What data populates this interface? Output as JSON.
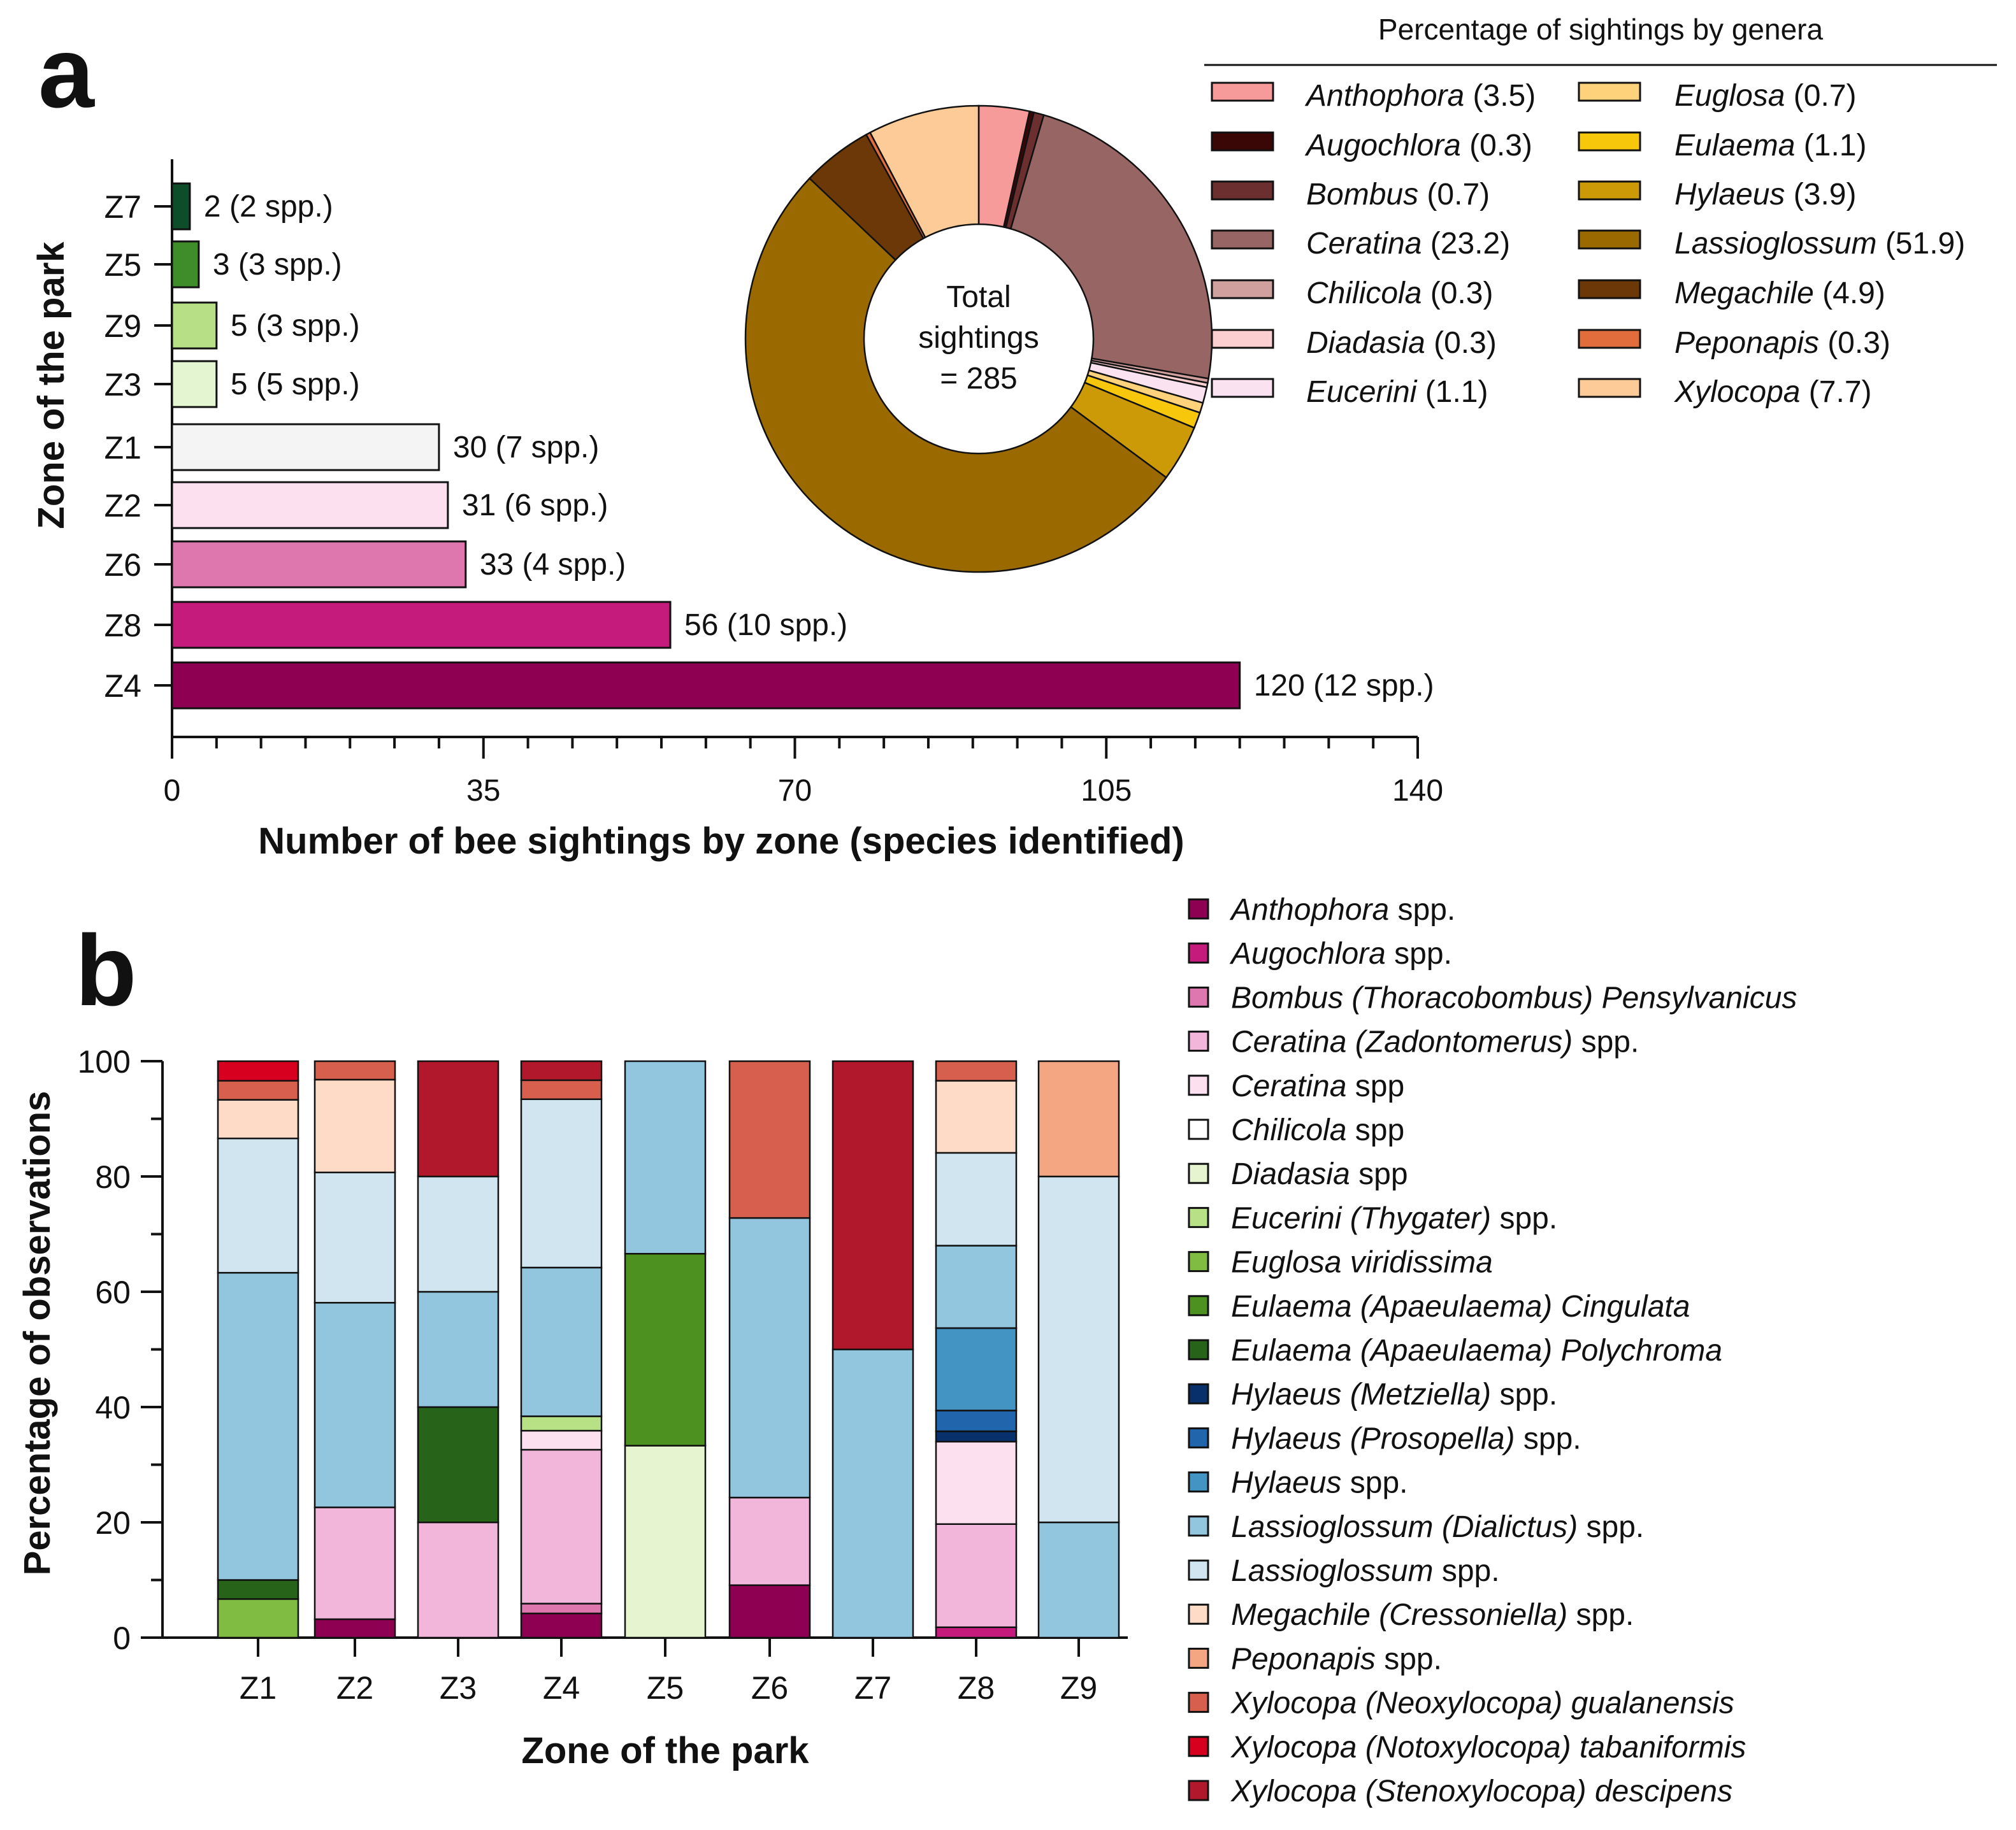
{
  "panel_a": {
    "label": "a",
    "ylabel": "Zone of the park",
    "xlabel": "Number of bee sightings by zone (species identified)",
    "xlim": [
      0,
      140
    ],
    "xticks": [
      "0",
      "35",
      "70",
      "105",
      "140"
    ]
  },
  "panel_b": {
    "label": "b",
    "ylabel": "Percentage of observations",
    "xlabel": "Zone of the park",
    "yticks": [
      "0",
      "20",
      "40",
      "60",
      "80",
      "100"
    ]
  },
  "donut": {
    "title": "Percentage of sightings by genera",
    "center_line1": "Total",
    "center_line2": "sightings",
    "center_line3": "= 285"
  },
  "chart_data": [
    {
      "type": "bar",
      "orientation": "horizontal",
      "title": "",
      "xlabel": "Number of bee sightings by zone (species identified)",
      "ylabel": "Zone of the park",
      "xlim": [
        0,
        140
      ],
      "categories": [
        "Z7",
        "Z5",
        "Z9",
        "Z3",
        "Z1",
        "Z2",
        "Z6",
        "Z8",
        "Z4"
      ],
      "values": [
        2,
        3,
        5,
        5,
        30,
        31,
        33,
        56,
        120
      ],
      "data_labels": [
        "2 (2 spp.)",
        "3 (3 spp.)",
        "5 (3 spp.)",
        "5 (5 spp.)",
        "30 (7 spp.)",
        "31 (6 spp.)",
        "33 (4 spp.)",
        "56 (10 spp.)",
        "120 (12 spp.)"
      ],
      "colors": [
        "#0e4d2a",
        "#3f8c2a",
        "#b7df85",
        "#e4f5d2",
        "#f4f4f4",
        "#fde0ef",
        "#de77ae",
        "#c51b7d",
        "#8e0152"
      ]
    },
    {
      "type": "pie",
      "title": "Percentage of sightings by genera",
      "total": 285,
      "labels": [
        "Anthophora",
        "Augochlora",
        "Bombus",
        "Ceratina",
        "Chilicola",
        "Diadasia",
        "Eucerini",
        "Euglosa",
        "Eulaema",
        "Hylaeus",
        "Lassioglossum",
        "Megachile",
        "Peponapis",
        "Xylocopa"
      ],
      "legend_values": [
        "(3.5)",
        "(0.3)",
        "(0.7)",
        "(23.2)",
        "(0.3)",
        "(0.3)",
        "(1.1)",
        "(0.7)",
        "(1.1)",
        "(3.9)",
        "(51.9)",
        "(4.9)",
        "(0.3)",
        "(7.7)"
      ],
      "values": [
        3.5,
        0.3,
        0.7,
        23.2,
        0.3,
        0.3,
        1.1,
        0.7,
        1.1,
        3.9,
        51.9,
        4.9,
        0.3,
        7.7
      ],
      "colors": [
        "#f79a9a",
        "#3a0606",
        "#6b2f2f",
        "#976563",
        "#d0a09e",
        "#fbcfd0",
        "#fbe2f0",
        "#fdd27a",
        "#f7c70b",
        "#cc9a06",
        "#9a6a00",
        "#6c3807",
        "#e06d3b",
        "#fdcb98"
      ]
    },
    {
      "type": "bar",
      "stacked": true,
      "title": "",
      "xlabel": "Zone of the park",
      "ylabel": "Percentage of observations",
      "ylim": [
        0,
        100
      ],
      "categories": [
        "Z1",
        "Z2",
        "Z3",
        "Z4",
        "Z5",
        "Z6",
        "Z7",
        "Z8",
        "Z9"
      ],
      "series": [
        {
          "name": "Anthophora",
          "suffix": " spp.",
          "color": "#8e0152",
          "values": [
            0,
            3.2,
            0,
            4.2,
            0,
            9.1,
            0,
            0,
            0
          ]
        },
        {
          "name": "Augochlora",
          "suffix": " spp.",
          "color": "#c51b7d",
          "values": [
            0,
            0,
            0,
            0,
            0,
            0,
            0,
            1.8,
            0
          ]
        },
        {
          "name": "Bombus (Thoracobombus) Pensylvanicus",
          "suffix": "",
          "color": "#de77ae",
          "values": [
            0,
            0,
            0,
            1.7,
            0,
            0,
            0,
            0,
            0
          ]
        },
        {
          "name": "Ceratina (Zadontomerus)",
          "suffix": " spp.",
          "color": "#f1b6da",
          "values": [
            0,
            19.4,
            20,
            26.7,
            0,
            15.2,
            0,
            17.9,
            0
          ]
        },
        {
          "name": "Ceratina",
          "suffix": " spp",
          "color": "#fde0ef",
          "values": [
            0,
            0,
            0,
            3.3,
            0,
            0,
            0,
            14.3,
            0
          ]
        },
        {
          "name": "Chilicola",
          "suffix": " spp",
          "color": "#ffffff",
          "values": [
            0,
            0,
            0,
            0,
            0,
            0,
            0,
            0,
            0
          ]
        },
        {
          "name": "Diadasia",
          "suffix": " spp",
          "color": "#e6f5d0",
          "values": [
            0,
            0,
            0,
            0,
            33.3,
            0,
            0,
            0,
            0
          ]
        },
        {
          "name": "Eucerini (Thygater)",
          "suffix": " spp.",
          "color": "#b8e186",
          "values": [
            0,
            0,
            0,
            2.5,
            0,
            0,
            0,
            0,
            0
          ]
        },
        {
          "name": "Euglosa viridissima",
          "suffix": "",
          "color": "#7fbc41",
          "values": [
            6.7,
            0,
            0,
            0,
            0,
            0,
            0,
            0,
            0
          ]
        },
        {
          "name": "Eulaema (Apaeulaema) Cingulata",
          "suffix": "",
          "color": "#4d9221",
          "values": [
            0,
            0,
            0,
            0,
            33.3,
            0,
            0,
            0,
            0
          ]
        },
        {
          "name": "Eulaema (Apaeulaema) Polychroma",
          "suffix": "",
          "color": "#276419",
          "values": [
            3.3,
            0,
            20,
            0,
            0,
            0,
            0,
            0,
            0
          ]
        },
        {
          "name": "Hylaeus (Metziella)",
          "suffix": " spp.",
          "color": "#08306b",
          "values": [
            0,
            0,
            0,
            0,
            0,
            0,
            0,
            1.8,
            0
          ]
        },
        {
          "name": "Hylaeus (Prosopella)",
          "suffix": " spp.",
          "color": "#2166ac",
          "values": [
            0,
            0,
            0,
            0,
            0,
            0,
            0,
            3.6,
            0
          ]
        },
        {
          "name": "Hylaeus",
          "suffix": " spp.",
          "color": "#4393c3",
          "values": [
            0,
            0,
            0,
            0,
            0,
            0,
            0,
            14.3,
            0
          ]
        },
        {
          "name": "Lassioglossum (Dialictus)",
          "suffix": " spp.",
          "color": "#92c5de",
          "values": [
            53.3,
            35.5,
            20,
            25.8,
            33.4,
            48.5,
            50,
            14.3,
            20
          ]
        },
        {
          "name": "Lassioglossum",
          "suffix": " spp.",
          "color": "#d1e5f0",
          "values": [
            23.3,
            22.6,
            20,
            29.2,
            0,
            0,
            0,
            16.1,
            60
          ]
        },
        {
          "name": "Megachile (Cressoniella)",
          "suffix": " spp.",
          "color": "#fddbc7",
          "values": [
            6.7,
            16.1,
            0,
            0,
            0,
            0,
            0,
            12.5,
            0
          ]
        },
        {
          "name": "Peponapis",
          "suffix": " spp.",
          "color": "#f4a582",
          "values": [
            0,
            0,
            0,
            0,
            0,
            0,
            0,
            0,
            20
          ]
        },
        {
          "name": "Xylocopa (Neoxylocopa) gualanensis",
          "suffix": "",
          "color": "#d6604d",
          "values": [
            3.3,
            3.2,
            0,
            3.3,
            0,
            27.2,
            0,
            3.4,
            0
          ]
        },
        {
          "name": "Xylocopa (Notoxylocopa) tabaniformis",
          "suffix": "",
          "color": "#d7001e",
          "values": [
            3.4,
            0,
            0,
            0,
            0,
            0,
            0,
            0,
            0
          ]
        },
        {
          "name": "Xylocopa (Stenoxylocopa) descipens",
          "suffix": "",
          "color": "#b2182b",
          "values": [
            0,
            0,
            20,
            3.3,
            0,
            0,
            50,
            0,
            0
          ]
        }
      ]
    }
  ]
}
